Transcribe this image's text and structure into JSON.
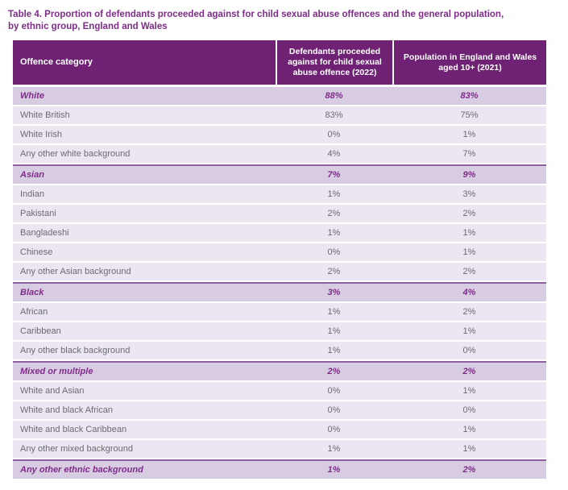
{
  "title_lines": [
    "Table 4. Proportion of defendants proceeded against for child sexual abuse offences and the general population,",
    "by ethnic group, England and Wales"
  ],
  "table": {
    "columns": [
      "Offence category",
      "Defendants proceeded against for child sexual abuse offence (2022)",
      "Population in England and Wales aged 10+ (2021)"
    ],
    "rows": [
      {
        "label": "White",
        "defendants": "88%",
        "population": "83%",
        "category": true
      },
      {
        "label": "White British",
        "defendants": "83%",
        "population": "75%",
        "category": false
      },
      {
        "label": "White Irish",
        "defendants": "0%",
        "population": "1%",
        "category": false
      },
      {
        "label": "Any other white background",
        "defendants": "4%",
        "population": "7%",
        "category": false
      },
      {
        "label": "Asian",
        "defendants": "7%",
        "population": "9%",
        "category": true
      },
      {
        "label": "Indian",
        "defendants": "1%",
        "population": "3%",
        "category": false
      },
      {
        "label": "Pakistani",
        "defendants": "2%",
        "population": "2%",
        "category": false
      },
      {
        "label": "Bangladeshi",
        "defendants": "1%",
        "population": "1%",
        "category": false
      },
      {
        "label": "Chinese",
        "defendants": "0%",
        "population": "1%",
        "category": false
      },
      {
        "label": "Any other Asian background",
        "defendants": "2%",
        "population": "2%",
        "category": false
      },
      {
        "label": "Black",
        "defendants": "3%",
        "population": "4%",
        "category": true
      },
      {
        "label": "African",
        "defendants": "1%",
        "population": "2%",
        "category": false
      },
      {
        "label": "Caribbean",
        "defendants": "1%",
        "population": "1%",
        "category": false
      },
      {
        "label": "Any other black background",
        "defendants": "1%",
        "population": "0%",
        "category": false
      },
      {
        "label": "Mixed or multiple",
        "defendants": "2%",
        "population": "2%",
        "category": true
      },
      {
        "label": "White and Asian",
        "defendants": "0%",
        "population": "1%",
        "category": false
      },
      {
        "label": "White and black African",
        "defendants": "0%",
        "population": "0%",
        "category": false
      },
      {
        "label": "White and black Caribbean",
        "defendants": "0%",
        "population": "1%",
        "category": false
      },
      {
        "label": "Any other mixed background",
        "defendants": "1%",
        "population": "1%",
        "category": false
      },
      {
        "label": "Any other ethnic background",
        "defendants": "1%",
        "population": "2%",
        "category": true
      }
    ]
  },
  "colors": {
    "header_bg": "#6F2274",
    "header_text": "#FFFFFF",
    "title_text": "#7D2C87",
    "category_text": "#7D2C87",
    "category_bg": "#D8CCE2",
    "row_bg": "#ECE5F2",
    "row_text": "#6B6B6E",
    "separator_line": "#8E5F9F"
  }
}
